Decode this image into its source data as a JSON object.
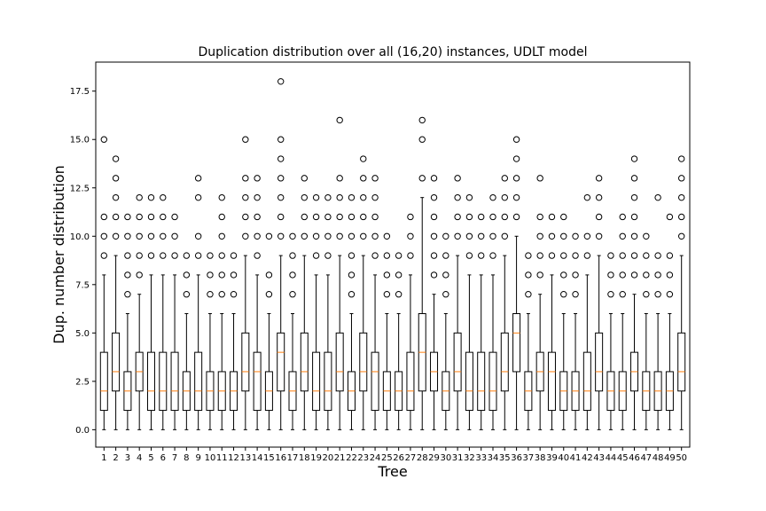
{
  "chart_data": {
    "type": "box",
    "title": "Duplication distribution over all (16,20) instances, UDLT model",
    "xlabel": "Tree",
    "ylabel": "Dup. number distribution",
    "ylim": [
      -0.9,
      19.0
    ],
    "yticks": [
      "0.0",
      "2.5",
      "5.0",
      "7.5",
      "10.0",
      "12.5",
      "15.0",
      "17.5"
    ],
    "ytick_values": [
      0,
      2.5,
      5,
      7.5,
      10,
      12.5,
      15,
      17.5
    ],
    "categories": [
      "1",
      "2",
      "3",
      "4",
      "5",
      "6",
      "7",
      "8",
      "9",
      "10",
      "11",
      "12",
      "13",
      "14",
      "15",
      "16",
      "17",
      "18",
      "19",
      "20",
      "21",
      "22",
      "23",
      "24",
      "25",
      "26",
      "27",
      "28",
      "29",
      "30",
      "31",
      "32",
      "33",
      "34",
      "35",
      "36",
      "37",
      "38",
      "39",
      "40",
      "41",
      "42",
      "43",
      "44",
      "45",
      "46",
      "47",
      "48",
      "49",
      "50"
    ],
    "box_color": "#000000",
    "median_color": "#ff7f0e",
    "boxes": [
      {
        "whislo": 0,
        "q1": 1,
        "med": 2,
        "q3": 4,
        "whishi": 8,
        "fliers": [
          9,
          10,
          11,
          15
        ]
      },
      {
        "whislo": 0,
        "q1": 2,
        "med": 3,
        "q3": 5,
        "whishi": 9,
        "fliers": [
          10,
          11,
          12,
          13,
          14
        ]
      },
      {
        "whislo": 0,
        "q1": 1,
        "med": 2,
        "q3": 3,
        "whishi": 6,
        "fliers": [
          7,
          8,
          9,
          10,
          11
        ]
      },
      {
        "whislo": 0,
        "q1": 2,
        "med": 3,
        "q3": 4,
        "whishi": 7,
        "fliers": [
          8,
          9,
          10,
          11,
          12
        ]
      },
      {
        "whislo": 0,
        "q1": 1,
        "med": 2,
        "q3": 4,
        "whishi": 8,
        "fliers": [
          9,
          10,
          11,
          12
        ]
      },
      {
        "whislo": 0,
        "q1": 1,
        "med": 2,
        "q3": 4,
        "whishi": 8,
        "fliers": [
          9,
          10,
          11,
          12
        ]
      },
      {
        "whislo": 0,
        "q1": 1,
        "med": 2,
        "q3": 4,
        "whishi": 8,
        "fliers": [
          9,
          10,
          11
        ]
      },
      {
        "whislo": 0,
        "q1": 1,
        "med": 2,
        "q3": 3,
        "whishi": 6,
        "fliers": [
          7,
          8,
          9
        ]
      },
      {
        "whislo": 0,
        "q1": 1,
        "med": 2,
        "q3": 4,
        "whishi": 8,
        "fliers": [
          9,
          10,
          12,
          13
        ]
      },
      {
        "whislo": 0,
        "q1": 1,
        "med": 2,
        "q3": 3,
        "whishi": 6,
        "fliers": [
          7,
          8,
          9
        ]
      },
      {
        "whislo": 0,
        "q1": 1,
        "med": 2,
        "q3": 3,
        "whishi": 6,
        "fliers": [
          7,
          8,
          9,
          10,
          11,
          12
        ]
      },
      {
        "whislo": 0,
        "q1": 1,
        "med": 2,
        "q3": 3,
        "whishi": 6,
        "fliers": [
          7,
          8,
          9
        ]
      },
      {
        "whislo": 0,
        "q1": 2,
        "med": 3,
        "q3": 5,
        "whishi": 9,
        "fliers": [
          10,
          11,
          12,
          13,
          15
        ]
      },
      {
        "whislo": 0,
        "q1": 1,
        "med": 3,
        "q3": 4,
        "whishi": 8,
        "fliers": [
          9,
          10,
          11,
          12,
          13
        ]
      },
      {
        "whislo": 0,
        "q1": 1,
        "med": 2,
        "q3": 3,
        "whishi": 6,
        "fliers": [
          7,
          8,
          10
        ]
      },
      {
        "whislo": 0,
        "q1": 2,
        "med": 4,
        "q3": 5,
        "whishi": 9,
        "fliers": [
          10,
          11,
          12,
          13,
          14,
          15,
          18
        ]
      },
      {
        "whislo": 0,
        "q1": 1,
        "med": 2,
        "q3": 3,
        "whishi": 6,
        "fliers": [
          7,
          8,
          9,
          10
        ]
      },
      {
        "whislo": 0,
        "q1": 2,
        "med": 3,
        "q3": 5,
        "whishi": 9,
        "fliers": [
          10,
          11,
          12,
          13
        ]
      },
      {
        "whislo": 0,
        "q1": 1,
        "med": 2,
        "q3": 4,
        "whishi": 8,
        "fliers": [
          9,
          10,
          11,
          12
        ]
      },
      {
        "whislo": 0,
        "q1": 1,
        "med": 2,
        "q3": 4,
        "whishi": 8,
        "fliers": [
          9,
          10,
          11,
          12
        ]
      },
      {
        "whislo": 0,
        "q1": 2,
        "med": 3,
        "q3": 5,
        "whishi": 9,
        "fliers": [
          10,
          11,
          12,
          13,
          16
        ]
      },
      {
        "whislo": 0,
        "q1": 1,
        "med": 2,
        "q3": 3,
        "whishi": 6,
        "fliers": [
          7,
          8,
          9,
          10,
          11,
          12
        ]
      },
      {
        "whislo": 0,
        "q1": 2,
        "med": 3,
        "q3": 5,
        "whishi": 9,
        "fliers": [
          10,
          11,
          12,
          13,
          14
        ]
      },
      {
        "whislo": 0,
        "q1": 1,
        "med": 3,
        "q3": 4,
        "whishi": 8,
        "fliers": [
          9,
          10,
          11,
          12,
          13
        ]
      },
      {
        "whislo": 0,
        "q1": 1,
        "med": 2,
        "q3": 3,
        "whishi": 6,
        "fliers": [
          7,
          8,
          9,
          10
        ]
      },
      {
        "whislo": 0,
        "q1": 1,
        "med": 2,
        "q3": 3,
        "whishi": 6,
        "fliers": [
          7,
          8,
          9
        ]
      },
      {
        "whislo": 0,
        "q1": 1,
        "med": 2,
        "q3": 4,
        "whishi": 8,
        "fliers": [
          9,
          10,
          11
        ]
      },
      {
        "whislo": 0,
        "q1": 2,
        "med": 4,
        "q3": 6,
        "whishi": 12,
        "fliers": [
          13,
          15,
          16
        ]
      },
      {
        "whislo": 0,
        "q1": 2,
        "med": 3,
        "q3": 4,
        "whishi": 7,
        "fliers": [
          8,
          9,
          10,
          11,
          12,
          13
        ]
      },
      {
        "whislo": 0,
        "q1": 1,
        "med": 2,
        "q3": 3,
        "whishi": 6,
        "fliers": [
          7,
          8,
          9,
          10
        ]
      },
      {
        "whislo": 0,
        "q1": 2,
        "med": 3,
        "q3": 5,
        "whishi": 9,
        "fliers": [
          10,
          11,
          12,
          13
        ]
      },
      {
        "whislo": 0,
        "q1": 1,
        "med": 2,
        "q3": 4,
        "whishi": 8,
        "fliers": [
          9,
          10,
          11,
          12
        ]
      },
      {
        "whislo": 0,
        "q1": 1,
        "med": 2,
        "q3": 4,
        "whishi": 8,
        "fliers": [
          9,
          10,
          11
        ]
      },
      {
        "whislo": 0,
        "q1": 1,
        "med": 2,
        "q3": 4,
        "whishi": 8,
        "fliers": [
          9,
          10,
          11,
          12
        ]
      },
      {
        "whislo": 0,
        "q1": 2,
        "med": 3,
        "q3": 5,
        "whishi": 9,
        "fliers": [
          10,
          11,
          12,
          13
        ]
      },
      {
        "whislo": 0,
        "q1": 3,
        "med": 5,
        "q3": 6,
        "whishi": 10,
        "fliers": [
          11,
          12,
          13,
          14,
          15
        ]
      },
      {
        "whislo": 0,
        "q1": 1,
        "med": 2,
        "q3": 3,
        "whishi": 6,
        "fliers": [
          7,
          8,
          9
        ]
      },
      {
        "whislo": 0,
        "q1": 2,
        "med": 3,
        "q3": 4,
        "whishi": 7,
        "fliers": [
          8,
          9,
          10,
          11,
          13
        ]
      },
      {
        "whislo": 0,
        "q1": 1,
        "med": 3,
        "q3": 4,
        "whishi": 8,
        "fliers": [
          9,
          10,
          11
        ]
      },
      {
        "whislo": 0,
        "q1": 1,
        "med": 2,
        "q3": 3,
        "whishi": 6,
        "fliers": [
          7,
          8,
          9,
          10,
          11
        ]
      },
      {
        "whislo": 0,
        "q1": 1,
        "med": 2,
        "q3": 3,
        "whishi": 6,
        "fliers": [
          7,
          8,
          9,
          10
        ]
      },
      {
        "whislo": 0,
        "q1": 1,
        "med": 2,
        "q3": 4,
        "whishi": 8,
        "fliers": [
          9,
          10,
          12
        ]
      },
      {
        "whislo": 0,
        "q1": 2,
        "med": 3,
        "q3": 5,
        "whishi": 9,
        "fliers": [
          10,
          11,
          12,
          13
        ]
      },
      {
        "whislo": 0,
        "q1": 1,
        "med": 2,
        "q3": 3,
        "whishi": 6,
        "fliers": [
          7,
          8,
          9
        ]
      },
      {
        "whislo": 0,
        "q1": 1,
        "med": 2,
        "q3": 3,
        "whishi": 6,
        "fliers": [
          7,
          8,
          9,
          10,
          11
        ]
      },
      {
        "whislo": 0,
        "q1": 2,
        "med": 3,
        "q3": 4,
        "whishi": 7,
        "fliers": [
          8,
          9,
          10,
          11,
          12,
          13,
          14
        ]
      },
      {
        "whislo": 0,
        "q1": 1,
        "med": 2,
        "q3": 3,
        "whishi": 6,
        "fliers": [
          7,
          8,
          9,
          10
        ]
      },
      {
        "whislo": 0,
        "q1": 1,
        "med": 2,
        "q3": 3,
        "whishi": 6,
        "fliers": [
          7,
          8,
          9,
          12
        ]
      },
      {
        "whislo": 0,
        "q1": 1,
        "med": 2,
        "q3": 3,
        "whishi": 6,
        "fliers": [
          7,
          8,
          9,
          11
        ]
      },
      {
        "whislo": 0,
        "q1": 2,
        "med": 3,
        "q3": 5,
        "whishi": 9,
        "fliers": [
          10,
          11,
          12,
          13,
          14
        ]
      }
    ]
  }
}
